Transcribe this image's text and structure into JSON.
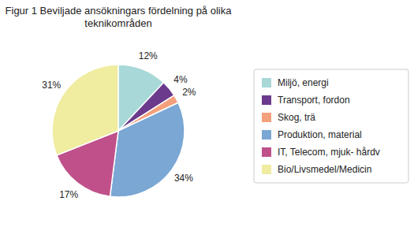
{
  "chart_data": {
    "type": "pie",
    "title": "Figur 1 Beviljade ansökningars fördelning på olika teknikområden",
    "categories": [
      "Miljö, energi",
      "Transport, fordon",
      "Skog, trä",
      "Produktion, material",
      "IT, Telecom, mjuk- hårdv",
      "Bio/Livsmedel/Medicin"
    ],
    "values": [
      12,
      4,
      2,
      34,
      17,
      31
    ],
    "value_labels": [
      "12%",
      "4%",
      "2%",
      "34%",
      "17%",
      "31%"
    ],
    "colors": [
      "#A8D8D8",
      "#6B3A8C",
      "#F4A07A",
      "#7BA7D4",
      "#C0508A",
      "#F0ECA0"
    ],
    "data_labels": true,
    "legend": "right"
  }
}
